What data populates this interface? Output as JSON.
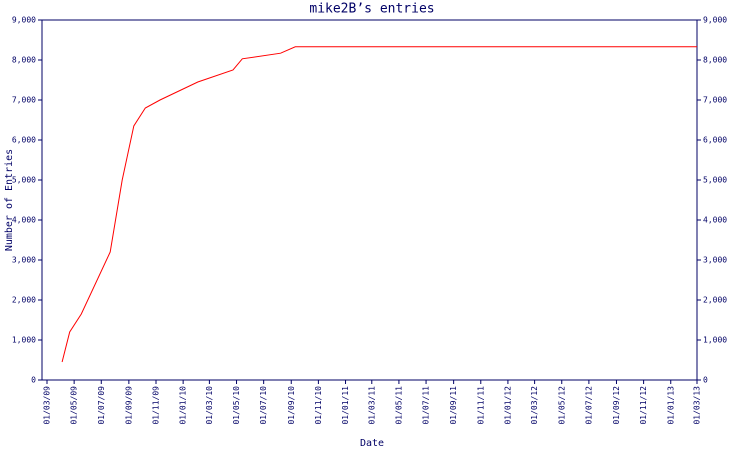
{
  "chart_data": {
    "type": "line",
    "title": "mike2B’s entries",
    "xlabel": "Date",
    "ylabel": "Number of Entries",
    "x": [
      "2009-04-04",
      "2009-04-21",
      "2009-05-17",
      "2009-07-21",
      "2009-08-17",
      "2009-09-12",
      "2009-10-08",
      "2009-11-10",
      "2010-02-03",
      "2010-04-23",
      "2010-05-14",
      "2010-08-08",
      "2010-09-10",
      "2013-03-01"
    ],
    "series": [
      {
        "name": "entries",
        "color": "#ff0000",
        "values": [
          450,
          1200,
          1650,
          3200,
          5000,
          6350,
          6800,
          7000,
          7450,
          7750,
          8030,
          8170,
          8330,
          8330
        ]
      }
    ],
    "xlim": [
      "2009-03-01",
      "2013-03-01"
    ],
    "xticks": [
      {
        "value": "2009-03-01",
        "label": "01/03/09"
      },
      {
        "value": "2009-05-01",
        "label": "01/05/09"
      },
      {
        "value": "2009-07-01",
        "label": "01/07/09"
      },
      {
        "value": "2009-09-01",
        "label": "01/09/09"
      },
      {
        "value": "2009-11-01",
        "label": "01/11/09"
      },
      {
        "value": "2010-01-01",
        "label": "01/01/10"
      },
      {
        "value": "2010-03-01",
        "label": "01/03/10"
      },
      {
        "value": "2010-05-01",
        "label": "01/05/10"
      },
      {
        "value": "2010-07-01",
        "label": "01/07/10"
      },
      {
        "value": "2010-09-01",
        "label": "01/09/10"
      },
      {
        "value": "2010-11-01",
        "label": "01/11/10"
      },
      {
        "value": "2011-01-01",
        "label": "01/01/11"
      },
      {
        "value": "2011-03-01",
        "label": "01/03/11"
      },
      {
        "value": "2011-05-01",
        "label": "01/05/11"
      },
      {
        "value": "2011-07-01",
        "label": "01/07/11"
      },
      {
        "value": "2011-09-01",
        "label": "01/09/11"
      },
      {
        "value": "2011-11-01",
        "label": "01/11/11"
      },
      {
        "value": "2012-01-01",
        "label": "01/01/12"
      },
      {
        "value": "2012-03-01",
        "label": "01/03/12"
      },
      {
        "value": "2012-05-01",
        "label": "01/05/12"
      },
      {
        "value": "2012-07-01",
        "label": "01/07/12"
      },
      {
        "value": "2012-09-01",
        "label": "01/09/12"
      },
      {
        "value": "2012-11-01",
        "label": "01/11/12"
      },
      {
        "value": "2013-01-01",
        "label": "01/01/13"
      },
      {
        "value": "2013-03-01",
        "label": "01/03/13"
      }
    ],
    "ylim": [
      0,
      9000
    ],
    "yticks": [
      0,
      {
        "value": 1000,
        "label": "1,000"
      },
      {
        "value": 2000,
        "label": "2,000"
      },
      {
        "value": 3000,
        "label": "3,000"
      },
      {
        "value": 4000,
        "label": "4,000"
      },
      {
        "value": 5000,
        "label": "5,000"
      },
      {
        "value": 6000,
        "label": "6,000"
      },
      {
        "value": 7000,
        "label": "7,000"
      },
      {
        "value": 8000,
        "label": "8,000"
      },
      {
        "value": 9000,
        "label": "9,000"
      }
    ],
    "right_axis": true
  }
}
